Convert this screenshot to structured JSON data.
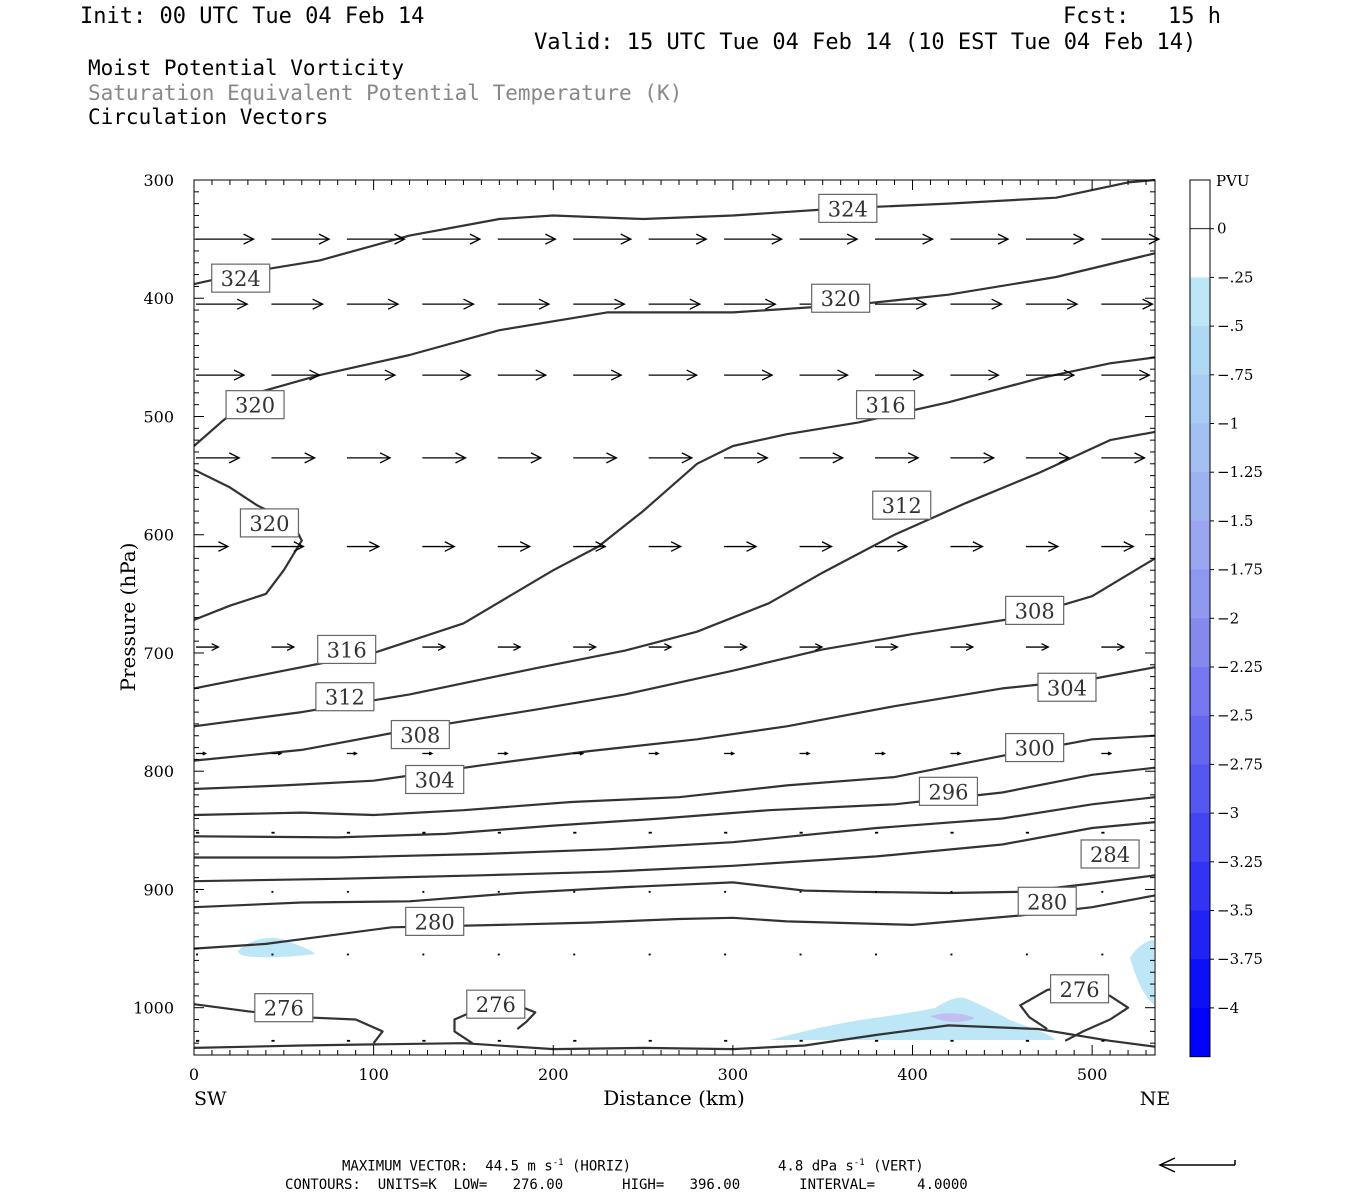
{
  "header": {
    "init": "Init: 00 UTC Tue 04 Feb 14",
    "fcst_label": "Fcst:",
    "fcst_value": "15 h",
    "valid": "Valid: 15 UTC Tue 04 Feb 14 (10 EST Tue 04 Feb 14)",
    "field1": "Moist Potential Vorticity",
    "field2": "Saturation Equivalent Potential Temperature (K)",
    "field3": "Circulation Vectors"
  },
  "footer": {
    "line1_a": "MAXIMUM VECTOR:  44.5 m s",
    "line1_sup1": "-1",
    "line1_b": " (HORIZ)",
    "line1_c": "4.8 dPa s",
    "line1_sup2": "-1",
    "line1_d": " (VERT)",
    "line2": "CONTOURS:  UNITS=K  LOW=   276.00       HIGH=   396.00       INTERVAL=     4.0000"
  },
  "colors": {
    "contour": "#333333",
    "pv_light": "#bde6f7",
    "pv_lavender": "#c0bff0"
  },
  "chart_data": {
    "type": "cross-section",
    "xlabel": "Distance (km)",
    "ylabel": "Pressure (hPa)",
    "left_end": "SW",
    "right_end": "NE",
    "xlim": [
      0,
      535
    ],
    "ylim": [
      1040,
      300
    ],
    "x_ticks": [
      0,
      100,
      200,
      300,
      400,
      500
    ],
    "y_ticks": [
      300,
      400,
      500,
      600,
      700,
      800,
      900,
      1000
    ],
    "colorbar": {
      "title": "PVU",
      "levels": [
        "0",
        "-.25",
        "-.5",
        "-.75",
        "-1",
        "-1.25",
        "-1.5",
        "-1.75",
        "-2",
        "-2.25",
        "-2.5",
        "-2.75",
        "-3",
        "-3.25",
        "-3.5",
        "-3.75",
        "-4"
      ],
      "colors": [
        "#ffffff",
        "#ffffff",
        "#bde6f7",
        "#afd8f5",
        "#a8ccf3",
        "#a4bff2",
        "#9cb2f1",
        "#9aa6ef",
        "#8f98f0",
        "#8489ee",
        "#7477ef",
        "#6566ef",
        "#5657f1",
        "#4445f2",
        "#3233f4",
        "#2122f6",
        "#0e0ff9",
        "#0202fb"
      ]
    },
    "contours": [
      {
        "label": "324",
        "points": [
          [
            0,
            388
          ],
          [
            30,
            378
          ],
          [
            70,
            368
          ],
          [
            120,
            347
          ],
          [
            170,
            333
          ],
          [
            200,
            330
          ],
          [
            250,
            333
          ],
          [
            300,
            330
          ],
          [
            360,
            324
          ],
          [
            420,
            320
          ],
          [
            480,
            315
          ],
          [
            520,
            302
          ],
          [
            535,
            300
          ]
        ]
      },
      {
        "label": "320",
        "points": [
          [
            0,
            525
          ],
          [
            15,
            505
          ],
          [
            35,
            480
          ],
          [
            70,
            465
          ],
          [
            120,
            448
          ],
          [
            170,
            427
          ],
          [
            230,
            412
          ],
          [
            300,
            412
          ],
          [
            370,
            405
          ],
          [
            420,
            397
          ],
          [
            480,
            382
          ],
          [
            535,
            362
          ]
        ]
      },
      {
        "label": "320",
        "points": [
          [
            0,
            545
          ],
          [
            20,
            560
          ],
          [
            35,
            575
          ],
          [
            55,
            590
          ],
          [
            60,
            605
          ],
          [
            50,
            630
          ],
          [
            40,
            650
          ],
          [
            20,
            660
          ],
          [
            0,
            672
          ]
        ]
      },
      {
        "label": "316",
        "points": [
          [
            0,
            730
          ],
          [
            50,
            715
          ],
          [
            100,
            700
          ],
          [
            150,
            675
          ],
          [
            200,
            630
          ],
          [
            225,
            610
          ],
          [
            250,
            580
          ],
          [
            280,
            540
          ],
          [
            300,
            525
          ],
          [
            330,
            515
          ],
          [
            370,
            505
          ],
          [
            420,
            488
          ],
          [
            470,
            468
          ],
          [
            510,
            455
          ],
          [
            535,
            450
          ]
        ]
      },
      {
        "label": "312",
        "points": [
          [
            0,
            762
          ],
          [
            60,
            750
          ],
          [
            120,
            735
          ],
          [
            190,
            713
          ],
          [
            240,
            698
          ],
          [
            280,
            682
          ],
          [
            320,
            658
          ],
          [
            350,
            632
          ],
          [
            390,
            600
          ],
          [
            430,
            573
          ],
          [
            470,
            548
          ],
          [
            510,
            520
          ],
          [
            535,
            513
          ]
        ]
      },
      {
        "label": "308",
        "points": [
          [
            0,
            791
          ],
          [
            60,
            782
          ],
          [
            120,
            765
          ],
          [
            190,
            748
          ],
          [
            240,
            735
          ],
          [
            300,
            715
          ],
          [
            350,
            697
          ],
          [
            400,
            684
          ],
          [
            460,
            670
          ],
          [
            500,
            652
          ],
          [
            535,
            620
          ]
        ]
      },
      {
        "label": "304",
        "points": [
          [
            0,
            815
          ],
          [
            50,
            812
          ],
          [
            100,
            808
          ],
          [
            160,
            795
          ],
          [
            220,
            783
          ],
          [
            280,
            773
          ],
          [
            330,
            762
          ],
          [
            390,
            745
          ],
          [
            450,
            730
          ],
          [
            500,
            722
          ],
          [
            535,
            712
          ]
        ]
      },
      {
        "label": "300",
        "points": [
          [
            0,
            837
          ],
          [
            60,
            835
          ],
          [
            100,
            837
          ],
          [
            150,
            833
          ],
          [
            210,
            826
          ],
          [
            270,
            822
          ],
          [
            330,
            812
          ],
          [
            390,
            805
          ],
          [
            450,
            787
          ],
          [
            500,
            773
          ],
          [
            535,
            770
          ]
        ]
      },
      {
        "label": "296",
        "points": [
          [
            0,
            855
          ],
          [
            80,
            856
          ],
          [
            140,
            853
          ],
          [
            200,
            846
          ],
          [
            260,
            840
          ],
          [
            320,
            833
          ],
          [
            390,
            828
          ],
          [
            450,
            818
          ],
          [
            500,
            803
          ],
          [
            535,
            797
          ]
        ]
      },
      {
        "label": "",
        "points": [
          [
            0,
            873
          ],
          [
            80,
            873
          ],
          [
            160,
            870
          ],
          [
            230,
            866
          ],
          [
            300,
            860
          ],
          [
            380,
            848
          ],
          [
            450,
            840
          ],
          [
            500,
            828
          ],
          [
            535,
            822
          ]
        ]
      },
      {
        "label": "284",
        "points": [
          [
            0,
            893
          ],
          [
            80,
            891
          ],
          [
            160,
            888
          ],
          [
            230,
            885
          ],
          [
            300,
            880
          ],
          [
            380,
            872
          ],
          [
            450,
            862
          ],
          [
            500,
            848
          ],
          [
            535,
            843
          ]
        ]
      },
      {
        "label": "280",
        "points": [
          [
            0,
            915
          ],
          [
            60,
            911
          ],
          [
            120,
            910
          ],
          [
            180,
            903
          ],
          [
            240,
            898
          ],
          [
            300,
            894
          ],
          [
            340,
            901
          ],
          [
            370,
            902
          ],
          [
            420,
            903
          ],
          [
            460,
            902
          ],
          [
            500,
            895
          ],
          [
            535,
            888
          ]
        ]
      },
      {
        "label": "280",
        "points": [
          [
            0,
            950
          ],
          [
            40,
            946
          ],
          [
            70,
            940
          ],
          [
            110,
            932
          ],
          [
            170,
            930
          ],
          [
            220,
            928
          ],
          [
            270,
            925
          ],
          [
            300,
            924
          ],
          [
            330,
            927
          ],
          [
            400,
            930
          ],
          [
            460,
            922
          ],
          [
            500,
            915
          ],
          [
            535,
            905
          ]
        ]
      },
      {
        "label": "276",
        "points": [
          [
            0,
            997
          ],
          [
            30,
            1003
          ],
          [
            60,
            1008
          ],
          [
            90,
            1010
          ],
          [
            105,
            1020
          ],
          [
            100,
            1030
          ]
        ]
      },
      {
        "label": "276",
        "points": [
          [
            155,
            1030
          ],
          [
            145,
            1020
          ],
          [
            145,
            1010
          ],
          [
            160,
            1000
          ],
          [
            180,
            998
          ],
          [
            190,
            1004
          ],
          [
            185,
            1012
          ],
          [
            180,
            1018
          ]
        ]
      },
      {
        "label": "276",
        "points": [
          [
            475,
            1018
          ],
          [
            465,
            1008
          ],
          [
            460,
            998
          ],
          [
            475,
            985
          ],
          [
            490,
            980
          ],
          [
            510,
            990
          ],
          [
            520,
            1000
          ],
          [
            510,
            1010
          ],
          [
            495,
            1020
          ],
          [
            485,
            1028
          ]
        ]
      },
      {
        "label": "",
        "points": [
          [
            0,
            1034
          ],
          [
            60,
            1032
          ],
          [
            100,
            1031
          ],
          [
            150,
            1030
          ],
          [
            200,
            1035
          ],
          [
            250,
            1034
          ],
          [
            300,
            1035
          ],
          [
            340,
            1032
          ],
          [
            380,
            1023
          ],
          [
            420,
            1015
          ],
          [
            470,
            1018
          ],
          [
            510,
            1028
          ],
          [
            535,
            1033
          ]
        ]
      }
    ],
    "contour_labels": [
      {
        "text": "324",
        "x": 364,
        "y": 324
      },
      {
        "text": "324",
        "x": 26,
        "y": 383
      },
      {
        "text": "320",
        "x": 360,
        "y": 400
      },
      {
        "text": "320",
        "x": 34,
        "y": 490
      },
      {
        "text": "320",
        "x": 42,
        "y": 590
      },
      {
        "text": "316",
        "x": 385,
        "y": 490
      },
      {
        "text": "316",
        "x": 85,
        "y": 697
      },
      {
        "text": "312",
        "x": 394,
        "y": 575
      },
      {
        "text": "312",
        "x": 84,
        "y": 737
      },
      {
        "text": "308",
        "x": 468,
        "y": 664
      },
      {
        "text": "308",
        "x": 126,
        "y": 769
      },
      {
        "text": "304",
        "x": 486,
        "y": 729
      },
      {
        "text": "304",
        "x": 134,
        "y": 807
      },
      {
        "text": "300",
        "x": 468,
        "y": 780
      },
      {
        "text": "296",
        "x": 420,
        "y": 817
      },
      {
        "text": "284",
        "x": 510,
        "y": 870
      },
      {
        "text": "280",
        "x": 475,
        "y": 910
      },
      {
        "text": "280",
        "x": 134,
        "y": 927
      },
      {
        "text": "276",
        "x": 50,
        "y": 1000
      },
      {
        "text": "276",
        "x": 168,
        "y": 997
      },
      {
        "text": "276",
        "x": 493,
        "y": 984
      }
    ],
    "vector_rows": [
      {
        "p": 350,
        "u": 36,
        "w": 0
      },
      {
        "p": 405,
        "u": 32,
        "w": 0
      },
      {
        "p": 465,
        "u": 30,
        "w": 0
      },
      {
        "p": 535,
        "u": 27,
        "w": 0
      },
      {
        "p": 610,
        "u": 20,
        "w": 0
      },
      {
        "p": 695,
        "u": 14,
        "w": 0
      },
      {
        "p": 785,
        "u": 6,
        "w": 0
      },
      {
        "p": 852,
        "u": 2,
        "w": 0
      },
      {
        "p": 902,
        "u": 1,
        "w": 0
      },
      {
        "p": 955,
        "u": 1,
        "w": 0
      },
      {
        "p": 1028,
        "u": 2,
        "w": 0
      }
    ],
    "vector_x": [
      0,
      42,
      84,
      126,
      168,
      210,
      252,
      294,
      336,
      378,
      420,
      462,
      504
    ]
  }
}
